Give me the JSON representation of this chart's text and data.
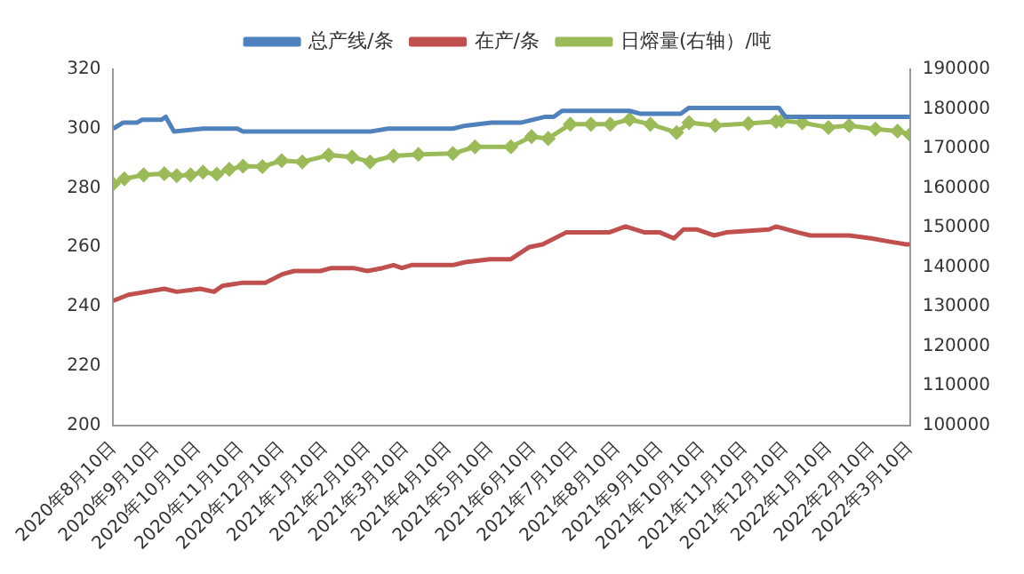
{
  "chart_data": {
    "type": "line",
    "legend": "top",
    "line_style": "solid",
    "ylim": [
      200,
      320
    ],
    "yticks": [
      200,
      220,
      240,
      260,
      280,
      300,
      320
    ],
    "y2lim": [
      100000,
      190000
    ],
    "y2ticks": [
      100000,
      110000,
      120000,
      130000,
      140000,
      150000,
      160000,
      170000,
      180000,
      190000
    ],
    "xlim": [
      "2020-08-10",
      "2022-03-10"
    ],
    "xticks": [
      {
        "value": "2020-08-10",
        "label": "2020年8月10日"
      },
      {
        "value": "2020-09-10",
        "label": "2020年9月10日"
      },
      {
        "value": "2020-10-10",
        "label": "2020年10月10日"
      },
      {
        "value": "2020-11-10",
        "label": "2020年11月10日"
      },
      {
        "value": "2020-12-10",
        "label": "2020年12月10日"
      },
      {
        "value": "2021-01-10",
        "label": "2021年1月10日"
      },
      {
        "value": "2021-02-10",
        "label": "2021年2月10日"
      },
      {
        "value": "2021-03-10",
        "label": "2021年3月10日"
      },
      {
        "value": "2021-04-10",
        "label": "2021年4月10日"
      },
      {
        "value": "2021-05-10",
        "label": "2021年5月10日"
      },
      {
        "value": "2021-06-10",
        "label": "2021年6月10日"
      },
      {
        "value": "2021-07-10",
        "label": "2021年7月10日"
      },
      {
        "value": "2021-08-10",
        "label": "2021年8月10日"
      },
      {
        "value": "2021-09-10",
        "label": "2021年9月10日"
      },
      {
        "value": "2021-10-10",
        "label": "2021年10月10日"
      },
      {
        "value": "2021-11-10",
        "label": "2021年11月10日"
      },
      {
        "value": "2021-12-10",
        "label": "2021年12月10日"
      },
      {
        "value": "2022-01-10",
        "label": "2022年1月10日"
      },
      {
        "value": "2022-02-10",
        "label": "2022年2月10日"
      },
      {
        "value": "2022-03-10",
        "label": "2022年3月10日"
      }
    ],
    "series": [
      {
        "name": "总产线/条",
        "color": "#4f81bd",
        "marker": "none",
        "x": [
          "2020-08-10",
          "2020-08-17",
          "2020-08-27",
          "2020-08-31",
          "2020-09-14",
          "2020-09-17",
          "2020-09-23",
          "2020-10-14",
          "2020-11-08",
          "2020-11-12",
          "2021-02-12",
          "2021-02-25",
          "2021-04-13",
          "2021-04-22",
          "2021-05-11",
          "2021-06-01",
          "2021-06-19",
          "2021-06-25",
          "2021-07-01",
          "2021-08-19",
          "2021-08-27",
          "2021-09-25",
          "2021-10-01",
          "2021-12-05",
          "2021-12-10",
          "2022-03-10"
        ],
        "values": [
          300,
          302,
          302,
          303,
          303,
          304,
          299,
          300,
          300,
          299,
          299,
          300,
          300,
          301,
          302,
          302,
          304,
          304,
          306,
          306,
          305,
          305,
          307,
          307,
          304,
          304
        ]
      },
      {
        "name": "在产/条",
        "color": "#c0504d",
        "marker": "none",
        "x": [
          "2020-08-10",
          "2020-08-21",
          "2020-09-03",
          "2020-09-16",
          "2020-09-25",
          "2020-10-12",
          "2020-10-22",
          "2020-10-28",
          "2020-11-11",
          "2020-11-28",
          "2020-12-11",
          "2020-12-19",
          "2021-01-07",
          "2021-01-15",
          "2021-01-31",
          "2021-02-10",
          "2021-02-21",
          "2021-03-01",
          "2021-03-07",
          "2021-03-14",
          "2021-04-13",
          "2021-04-22",
          "2021-05-10",
          "2021-05-25",
          "2021-06-07",
          "2021-06-17",
          "2021-07-04",
          "2021-08-04",
          "2021-08-16",
          "2021-08-30",
          "2021-09-10",
          "2021-09-20",
          "2021-09-27",
          "2021-10-07",
          "2021-10-19",
          "2021-10-28",
          "2021-11-28",
          "2021-12-03",
          "2021-12-19",
          "2021-12-28",
          "2022-01-25",
          "2022-02-10",
          "2022-02-22",
          "2022-03-07",
          "2022-03-10"
        ],
        "values": [
          242,
          244,
          245,
          246,
          245,
          246,
          245,
          247,
          248,
          248,
          251,
          252,
          252,
          253,
          253,
          252,
          253,
          254,
          253,
          254,
          254,
          255,
          256,
          256,
          260,
          261,
          265,
          265,
          267,
          265,
          265,
          263,
          266,
          266,
          264,
          265,
          266,
          267,
          265,
          264,
          264,
          263,
          262,
          261,
          261
        ]
      },
      {
        "name": "日熔量(右轴）/吨",
        "color": "#9bbb59",
        "marker": "diamond",
        "axis": "y2",
        "x": [
          "2020-08-10",
          "2020-08-18",
          "2020-09-01",
          "2020-09-16",
          "2020-09-25",
          "2020-10-05",
          "2020-10-14",
          "2020-10-24",
          "2020-11-02",
          "2020-11-12",
          "2020-11-26",
          "2020-12-10",
          "2020-12-25",
          "2021-01-13",
          "2021-01-30",
          "2021-02-12",
          "2021-03-01",
          "2021-03-19",
          "2021-04-13",
          "2021-04-29",
          "2021-05-25",
          "2021-06-09",
          "2021-06-21",
          "2021-07-07",
          "2021-07-22",
          "2021-08-05",
          "2021-08-19",
          "2021-09-03",
          "2021-09-22",
          "2021-10-01",
          "2021-10-20",
          "2021-11-13",
          "2021-12-03",
          "2021-12-07",
          "2021-12-22",
          "2022-01-10",
          "2022-01-25",
          "2022-02-13",
          "2022-03-01",
          "2022-03-10"
        ],
        "values": [
          161000,
          162300,
          163300,
          163600,
          163100,
          163300,
          164000,
          163500,
          164700,
          165500,
          165400,
          166900,
          166600,
          168300,
          167800,
          166600,
          168100,
          168500,
          168700,
          170400,
          170400,
          173000,
          172500,
          176100,
          176100,
          176100,
          177300,
          176100,
          174000,
          176500,
          175800,
          176300,
          176800,
          177000,
          176500,
          175300,
          175800,
          174900,
          174400,
          173500
        ]
      }
    ]
  }
}
